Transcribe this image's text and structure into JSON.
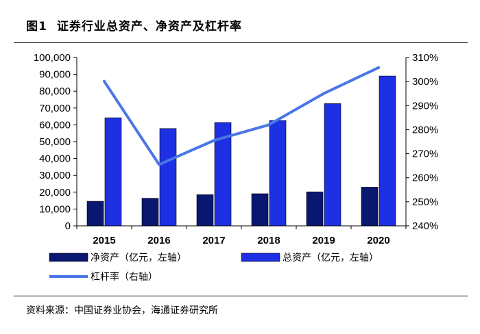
{
  "figure": {
    "number": "图1",
    "title": "证券行业总资产、净资产及杠杆率",
    "source": "资料来源：中国证券业协会，海通证券研究所"
  },
  "colors": {
    "net_assets": "#0a1770",
    "total_assets": "#1d30e3",
    "leverage": "#4a76e6"
  },
  "chart_data": {
    "type": "bar",
    "categories": [
      "2015",
      "2016",
      "2017",
      "2018",
      "2019",
      "2020"
    ],
    "series": [
      {
        "name": "净资产（亿元，左轴）",
        "kind": "bar",
        "axis": "left",
        "values": [
          14600,
          16400,
          18500,
          19100,
          20200,
          23000
        ]
      },
      {
        "name": "总资产（亿元，左轴）",
        "kind": "bar",
        "axis": "left",
        "values": [
          64200,
          57800,
          61400,
          62600,
          72600,
          89000
        ]
      },
      {
        "name": "杠杆率（右轴）",
        "kind": "line",
        "axis": "right",
        "values": [
          300.1,
          265.5,
          275.5,
          282.0,
          295.0,
          305.8
        ]
      }
    ],
    "left_axis": {
      "ylim": [
        0,
        100000
      ],
      "ticks": [
        "0",
        "10,000",
        "20,000",
        "30,000",
        "40,000",
        "50,000",
        "60,000",
        "70,000",
        "80,000",
        "90,000",
        "100,000"
      ]
    },
    "right_axis": {
      "ylim": [
        240,
        310
      ],
      "ticks": [
        "240%",
        "250%",
        "260%",
        "270%",
        "280%",
        "290%",
        "300%",
        "310%"
      ]
    },
    "grid": false,
    "legend_position": "bottom"
  }
}
